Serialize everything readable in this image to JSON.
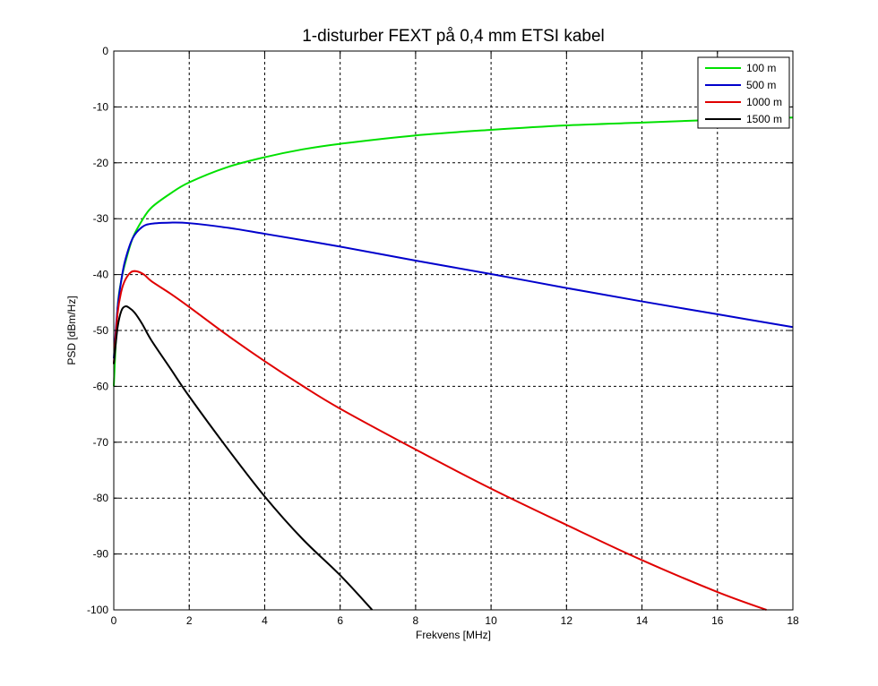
{
  "chart_data": {
    "type": "line",
    "title": "1-disturber FEXT på 0,4 mm ETSI kabel",
    "xlabel": "Frekvens [MHz]",
    "ylabel": "PSD [dBm/Hz]",
    "xlim": [
      0,
      18
    ],
    "ylim": [
      -100,
      0
    ],
    "xticks": [
      0,
      2,
      4,
      6,
      8,
      10,
      12,
      14,
      16,
      18
    ],
    "yticks": [
      0,
      -10,
      -20,
      -30,
      -40,
      -50,
      -60,
      -70,
      -80,
      -90,
      -100
    ],
    "grid": true,
    "legend_position": "top-right",
    "series": [
      {
        "name": "100 m",
        "color": "#00e000",
        "x": [
          0,
          0.1,
          0.2,
          0.3,
          0.5,
          0.75,
          1,
          1.5,
          2,
          3,
          4,
          5,
          6,
          8,
          10,
          12,
          14,
          16,
          18
        ],
        "y": [
          -60,
          -46,
          -41,
          -38,
          -33.5,
          -30.3,
          -28,
          -25.5,
          -23.5,
          -20.8,
          -19,
          -17.6,
          -16.6,
          -15.1,
          -14.1,
          -13.3,
          -12.8,
          -12.3,
          -11.9
        ]
      },
      {
        "name": "500 m",
        "color": "#0000cc",
        "x": [
          0,
          0.1,
          0.2,
          0.3,
          0.5,
          0.75,
          1,
          1.5,
          2,
          3,
          4,
          6,
          8,
          10,
          12,
          14,
          16,
          18
        ],
        "y": [
          -55,
          -46,
          -41,
          -37.5,
          -33.5,
          -31.5,
          -30.9,
          -30.7,
          -30.8,
          -31.6,
          -32.7,
          -35,
          -37.5,
          -39.9,
          -42.4,
          -44.8,
          -47.1,
          -49.4
        ]
      },
      {
        "name": "1000 m",
        "color": "#e00000",
        "x": [
          0,
          0.1,
          0.2,
          0.3,
          0.45,
          0.6,
          0.8,
          1,
          1.5,
          2,
          3,
          4,
          5,
          6,
          8,
          10,
          12,
          14,
          16,
          17.3
        ],
        "y": [
          -56,
          -47,
          -43,
          -41,
          -39.6,
          -39.4,
          -40,
          -41.2,
          -43.4,
          -45.8,
          -50.8,
          -55.5,
          -59.9,
          -64,
          -71.3,
          -78.3,
          -84.8,
          -91.1,
          -96.8,
          -100
        ]
      },
      {
        "name": "1500 m",
        "color": "#000000",
        "x": [
          0,
          0.1,
          0.2,
          0.3,
          0.4,
          0.55,
          0.75,
          1,
          1.5,
          2,
          3,
          4,
          5,
          6,
          6.85
        ],
        "y": [
          -56,
          -49.5,
          -46.5,
          -45.7,
          -45.9,
          -46.8,
          -48.8,
          -51.8,
          -56.8,
          -61.8,
          -71,
          -79.7,
          -87.3,
          -93.8,
          -100
        ]
      }
    ]
  }
}
